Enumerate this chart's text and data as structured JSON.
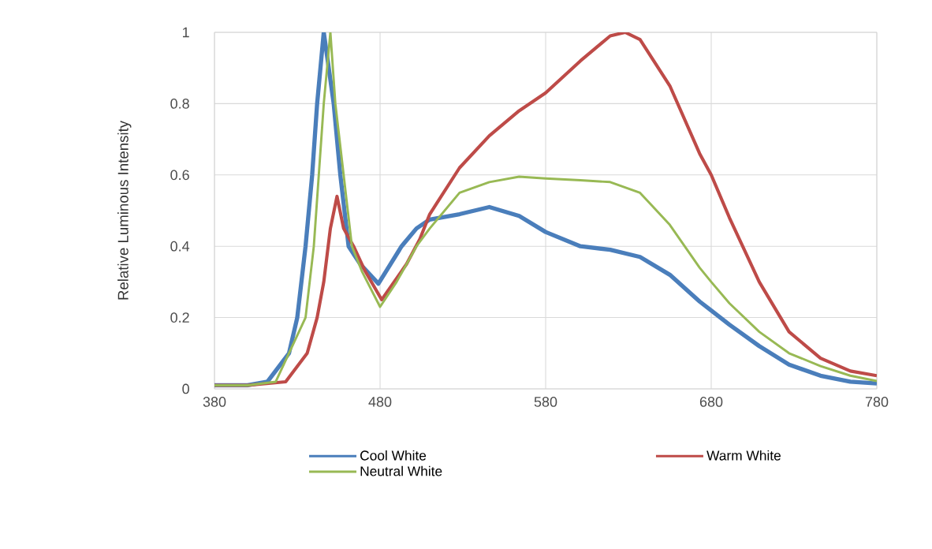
{
  "chart_data": {
    "type": "line",
    "ylabel": "Relative Luminous Intensity",
    "xlim": [
      380,
      780
    ],
    "ylim": [
      0,
      1
    ],
    "xticks": [
      380,
      480,
      580,
      680,
      780
    ],
    "yticks": [
      0,
      0.2,
      0.4,
      0.6,
      0.8,
      1
    ],
    "grid": true,
    "legend": "bottom",
    "marker": "none",
    "line_style": "solid",
    "series": [
      {
        "name": "Cool White",
        "color": "#4a7ebb",
        "x": [
          380,
          400,
          412,
          425,
          430,
          435,
          439,
          442,
          446,
          452,
          456,
          461,
          468,
          479,
          493,
          502,
          510,
          528,
          546,
          564,
          580,
          601,
          619,
          637,
          655,
          673,
          680,
          691,
          709,
          727,
          746,
          764,
          780
        ],
        "values": [
          0.01,
          0.01,
          0.02,
          0.1,
          0.2,
          0.4,
          0.6,
          0.8,
          1.0,
          0.8,
          0.6,
          0.4,
          0.35,
          0.295,
          0.4,
          0.45,
          0.475,
          0.49,
          0.51,
          0.485,
          0.44,
          0.4,
          0.39,
          0.37,
          0.32,
          0.245,
          0.22,
          0.18,
          0.12,
          0.068,
          0.037,
          0.02,
          0.015
        ]
      },
      {
        "name": "Warm White",
        "color": "#be4b48",
        "x": [
          380,
          400,
          423,
          436,
          442,
          446,
          450,
          454,
          458,
          464,
          471,
          481,
          496,
          504,
          510,
          528,
          546,
          564,
          580,
          601,
          619,
          628,
          637,
          655,
          673,
          680,
          691,
          709,
          727,
          746,
          764,
          780
        ],
        "values": [
          0.01,
          0.01,
          0.02,
          0.1,
          0.2,
          0.3,
          0.45,
          0.54,
          0.45,
          0.4,
          0.33,
          0.25,
          0.35,
          0.42,
          0.49,
          0.62,
          0.71,
          0.78,
          0.83,
          0.92,
          0.99,
          1.0,
          0.98,
          0.85,
          0.66,
          0.6,
          0.48,
          0.3,
          0.16,
          0.086,
          0.05,
          0.037
        ]
      },
      {
        "name": "Neutral White",
        "color": "#98b954",
        "x": [
          380,
          400,
          417,
          435,
          440,
          443,
          446,
          450,
          453,
          458,
          463,
          469,
          480,
          490,
          502,
          510,
          528,
          546,
          564,
          580,
          601,
          619,
          637,
          655,
          673,
          680,
          691,
          709,
          727,
          746,
          764,
          780
        ],
        "values": [
          0.01,
          0.01,
          0.02,
          0.2,
          0.4,
          0.6,
          0.8,
          1.0,
          0.8,
          0.6,
          0.4,
          0.33,
          0.23,
          0.3,
          0.4,
          0.45,
          0.55,
          0.58,
          0.595,
          0.59,
          0.585,
          0.58,
          0.55,
          0.46,
          0.34,
          0.3,
          0.24,
          0.16,
          0.1,
          0.064,
          0.037,
          0.022
        ]
      }
    ]
  }
}
